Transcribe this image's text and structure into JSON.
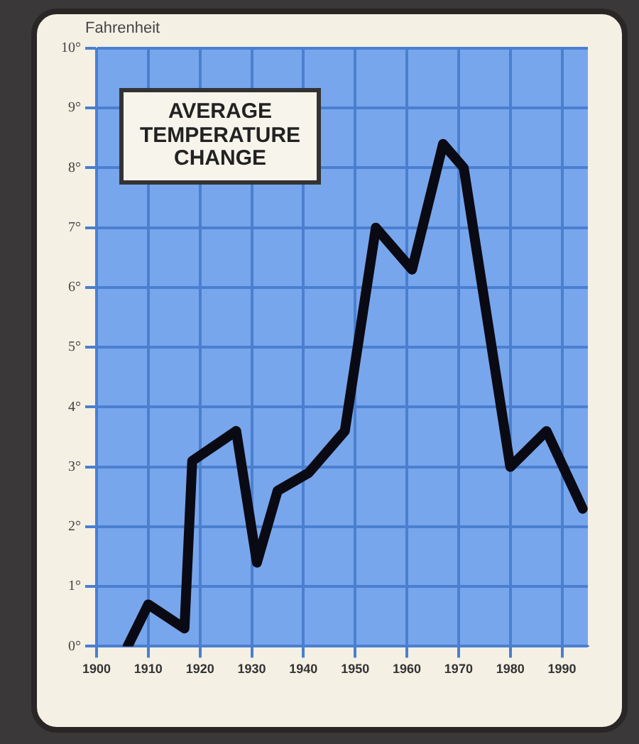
{
  "chart_data": {
    "type": "line",
    "title": "AVERAGE TEMPERATURE CHANGE",
    "ylabel": "Fahrenheit",
    "x": [
      1906,
      1910,
      1917,
      1918.5,
      1927,
      1931,
      1935,
      1941,
      1948,
      1954,
      1961,
      1967,
      1971,
      1980,
      1987,
      1994
    ],
    "series": [
      {
        "color": "#0a0a14",
        "values": [
          0,
          0.7,
          0.3,
          3.1,
          3.6,
          1.4,
          2.6,
          2.9,
          3.6,
          7.0,
          6.3,
          8.4,
          8.0,
          3.0,
          3.6,
          2.3
        ]
      }
    ],
    "xlim": [
      1900,
      1995
    ],
    "xticks": [
      1900,
      1910,
      1920,
      1930,
      1940,
      1950,
      1960,
      1970,
      1980,
      1990
    ],
    "ylim": [
      0,
      10
    ],
    "yticks": [
      {
        "value": 0,
        "label": "0°"
      },
      {
        "value": 1,
        "label": "1°"
      },
      {
        "value": 2,
        "label": "2°"
      },
      {
        "value": 3,
        "label": "3°"
      },
      {
        "value": 4,
        "label": "4°"
      },
      {
        "value": 5,
        "label": "5°"
      },
      {
        "value": 6,
        "label": "6°"
      },
      {
        "value": 7,
        "label": "7°"
      },
      {
        "value": 8,
        "label": "8°"
      },
      {
        "value": 9,
        "label": "9°"
      },
      {
        "value": 10,
        "label": "10°"
      }
    ],
    "grid": true,
    "legend": false,
    "marker": "none",
    "line_style": "solid"
  }
}
